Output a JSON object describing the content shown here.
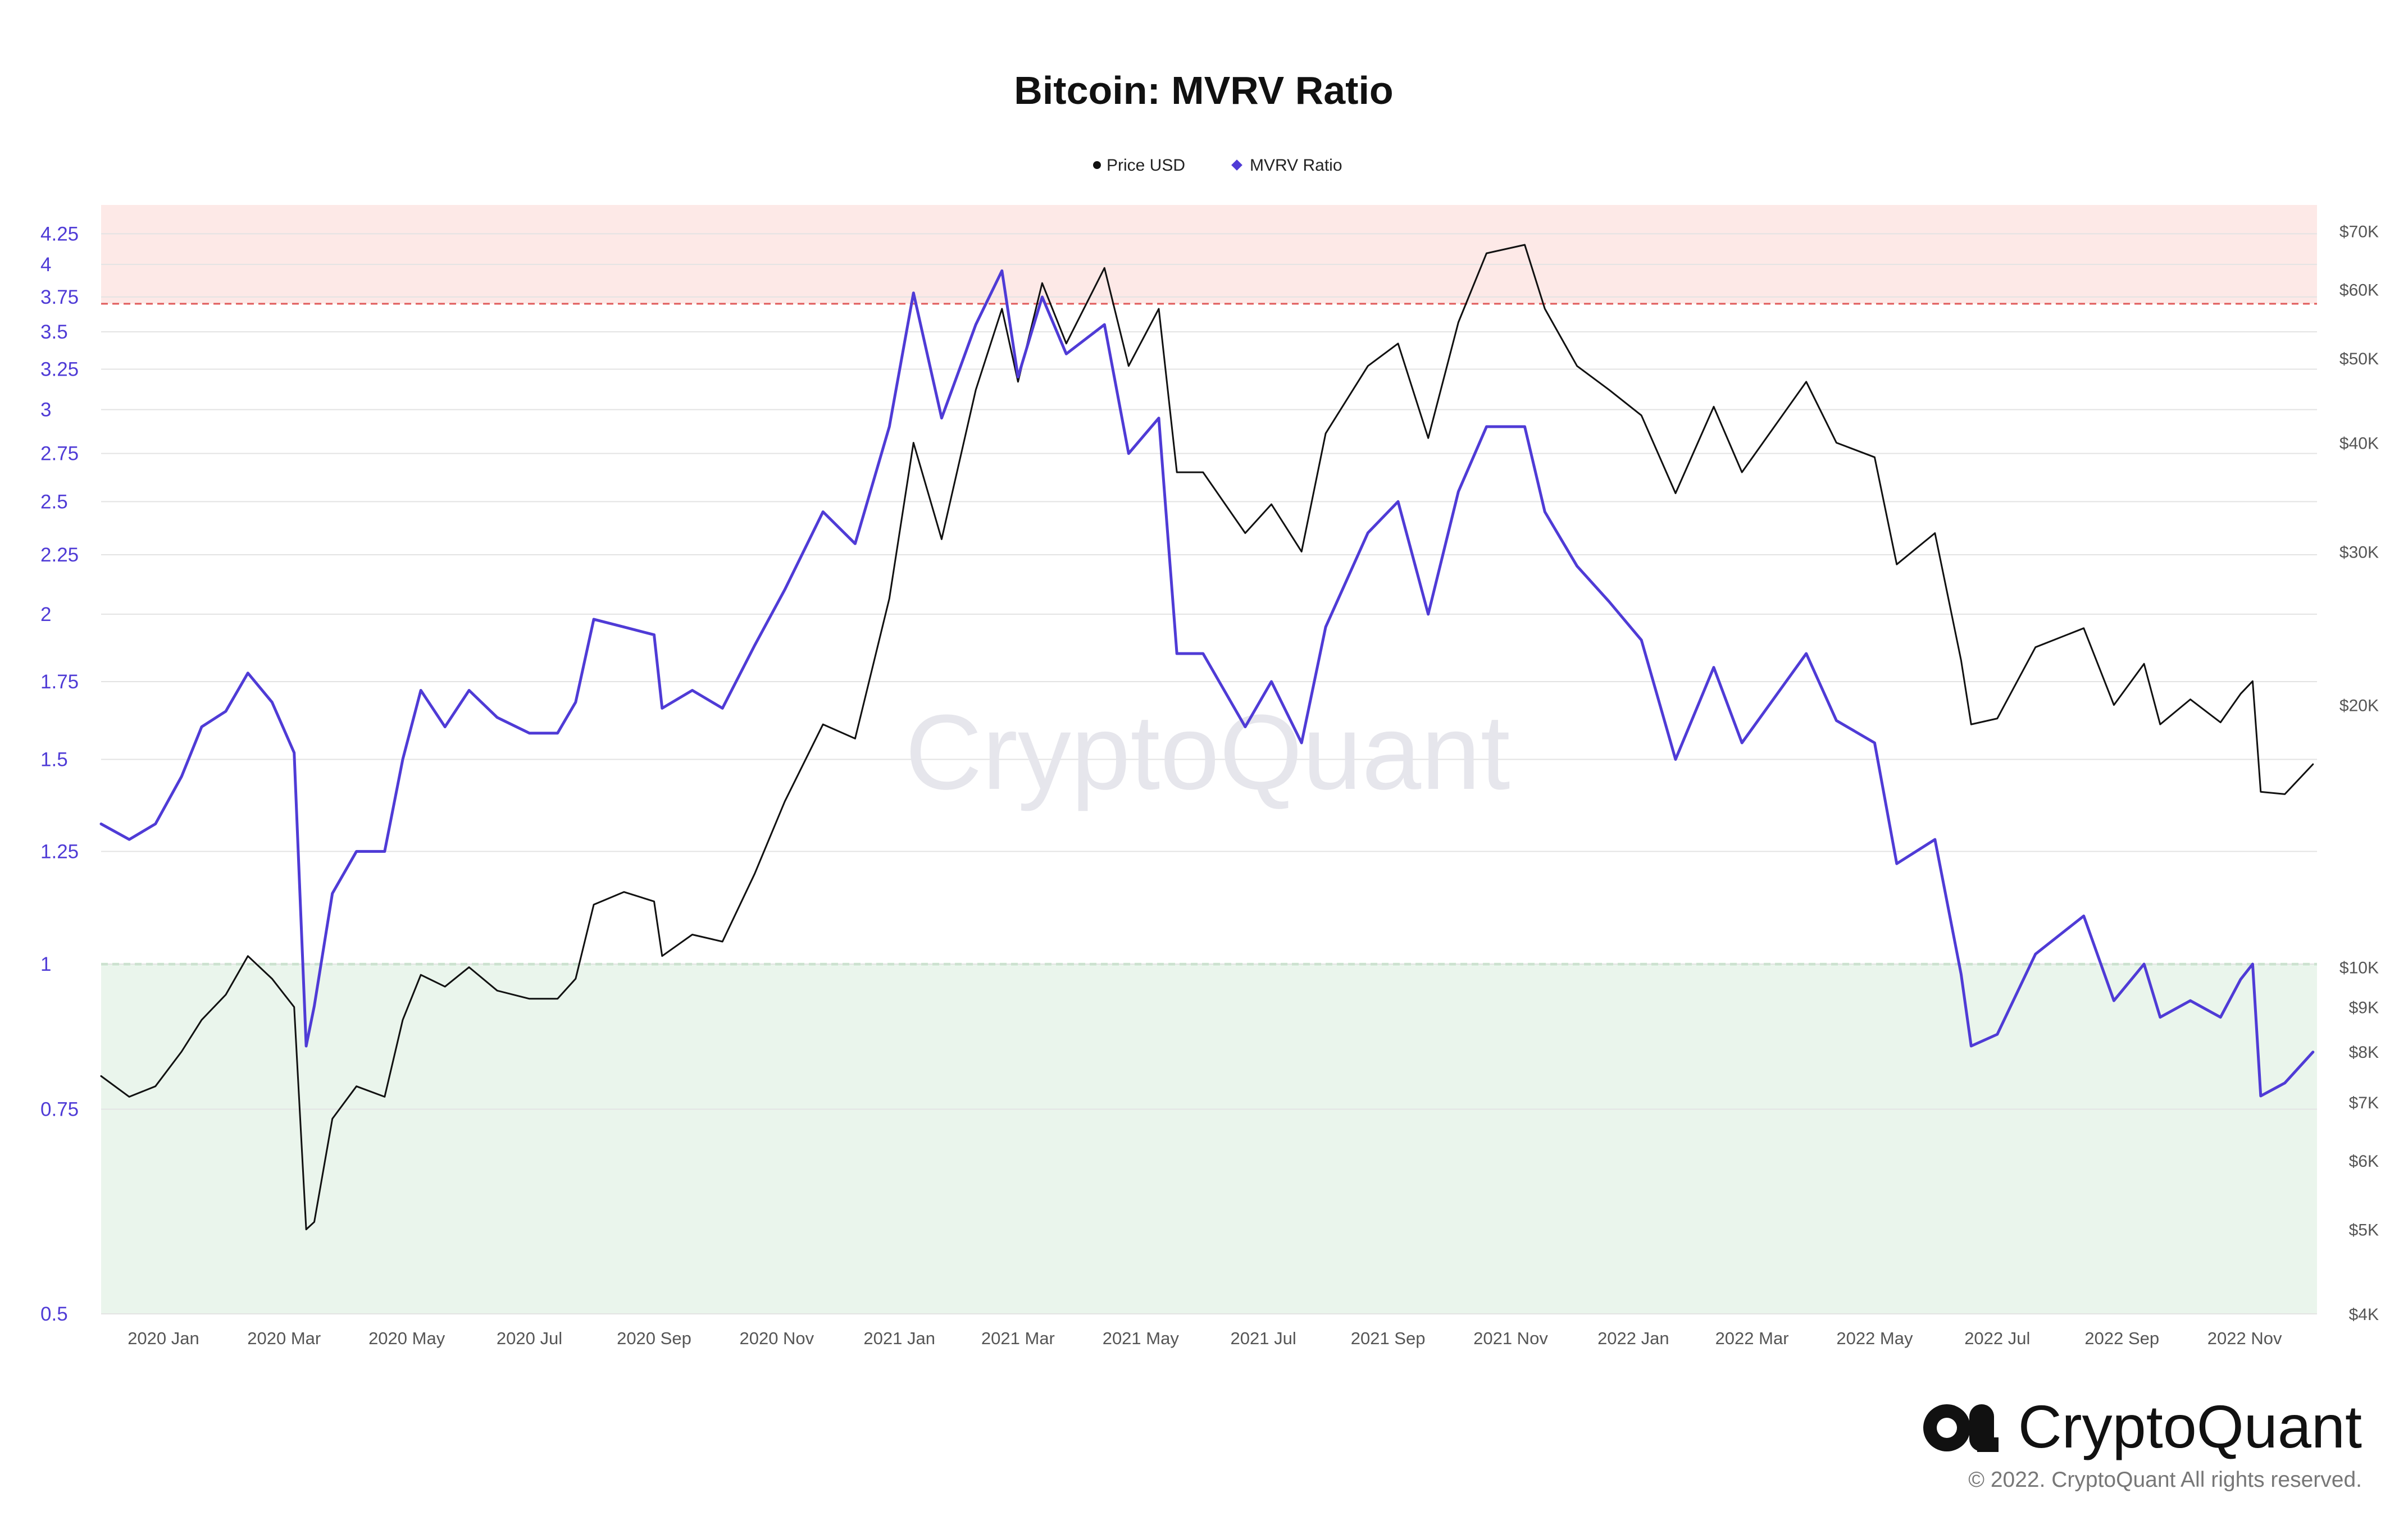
{
  "colors": {
    "price": "#111111",
    "mvrv": "#4f3bd6",
    "overvalued_band": "#fde9e7",
    "overvalued_line": "#e05a5a",
    "undervalued_band": "#eaf5ec",
    "undervalued_line": "#5bbf6b",
    "grid": "#e3e3e3"
  },
  "branding": {
    "watermark": "CryptoQuant",
    "logo_text": "CryptoQuant",
    "copyright": "© 2022. CryptoQuant All rights reserved."
  },
  "chart_data": {
    "type": "line",
    "title": "Bitcoin: MVRV Ratio",
    "legend": {
      "placement": "top-center",
      "items": [
        {
          "label": "Price USD",
          "marker": "circle",
          "color": "#111111"
        },
        {
          "label": "MVRV Ratio",
          "marker": "diamond",
          "color": "#4f3bd6"
        }
      ]
    },
    "grid": true,
    "x_axis": {
      "type": "date",
      "range": [
        "2019-12-01",
        "2022-12-07"
      ],
      "tick_labels": [
        "2020 Jan",
        "2020 Mar",
        "2020 May",
        "2020 Jul",
        "2020 Sep",
        "2020 Nov",
        "2021 Jan",
        "2021 Mar",
        "2021 May",
        "2021 Jul",
        "2021 Sep",
        "2021 Nov",
        "2022 Jan",
        "2022 Mar",
        "2022 May",
        "2022 Jul",
        "2022 Sep",
        "2022 Nov"
      ],
      "tick_dates": [
        "2020-01-01",
        "2020-03-01",
        "2020-05-01",
        "2020-07-01",
        "2020-09-01",
        "2020-11-01",
        "2021-01-01",
        "2021-03-01",
        "2021-05-01",
        "2021-07-01",
        "2021-09-01",
        "2021-11-01",
        "2022-01-01",
        "2022-03-01",
        "2022-05-01",
        "2022-07-01",
        "2022-09-01",
        "2022-11-01"
      ]
    },
    "left_axis": {
      "label": "",
      "scale": "log",
      "range": [
        0.5,
        4.5
      ],
      "ticks": [
        0.5,
        0.75,
        1,
        1.25,
        1.5,
        1.75,
        2,
        2.25,
        2.5,
        2.75,
        3,
        3.25,
        3.5,
        3.75,
        4,
        4.25
      ],
      "tick_labels": [
        "0.5",
        "0.75",
        "1",
        "1.25",
        "1.5",
        "1.75",
        "2",
        "2.25",
        "2.5",
        "2.75",
        "3",
        "3.25",
        "3.5",
        "3.75",
        "4",
        "4.25"
      ]
    },
    "right_axis": {
      "label": "",
      "scale": "log",
      "range": [
        4000,
        75000
      ],
      "ticks": [
        4000,
        5000,
        6000,
        7000,
        8000,
        9000,
        10000,
        20000,
        30000,
        40000,
        50000,
        60000,
        70000
      ],
      "tick_labels": [
        "$4K",
        "$5K",
        "$6K",
        "$7K",
        "$8K",
        "$9K",
        "$10K",
        "$20K",
        "$30K",
        "$40K",
        "$50K",
        "$60K",
        "$70K"
      ]
    },
    "bands": [
      {
        "name": "overvalued",
        "from": 3.7,
        "to": 4.5,
        "threshold": 3.7
      },
      {
        "name": "undervalued",
        "from": 0.5,
        "to": 1.0,
        "threshold": 1.0
      }
    ],
    "series": [
      {
        "name": "Price USD",
        "axis": "right",
        "points": [
          [
            "2019-12-01",
            7500
          ],
          [
            "2019-12-15",
            7100
          ],
          [
            "2019-12-28",
            7300
          ],
          [
            "2020-01-10",
            8000
          ],
          [
            "2020-01-20",
            8700
          ],
          [
            "2020-02-01",
            9300
          ],
          [
            "2020-02-12",
            10300
          ],
          [
            "2020-02-24",
            9700
          ],
          [
            "2020-03-06",
            9000
          ],
          [
            "2020-03-12",
            5000
          ],
          [
            "2020-03-16",
            5100
          ],
          [
            "2020-03-25",
            6700
          ],
          [
            "2020-04-06",
            7300
          ],
          [
            "2020-04-20",
            7100
          ],
          [
            "2020-04-29",
            8700
          ],
          [
            "2020-05-08",
            9800
          ],
          [
            "2020-05-20",
            9500
          ],
          [
            "2020-06-01",
            10000
          ],
          [
            "2020-06-15",
            9400
          ],
          [
            "2020-07-01",
            9200
          ],
          [
            "2020-07-15",
            9200
          ],
          [
            "2020-07-24",
            9700
          ],
          [
            "2020-08-02",
            11800
          ],
          [
            "2020-08-17",
            12200
          ],
          [
            "2020-09-01",
            11900
          ],
          [
            "2020-09-05",
            10300
          ],
          [
            "2020-09-20",
            10900
          ],
          [
            "2020-10-05",
            10700
          ],
          [
            "2020-10-21",
            12800
          ],
          [
            "2020-11-05",
            15500
          ],
          [
            "2020-11-24",
            19000
          ],
          [
            "2020-12-10",
            18300
          ],
          [
            "2020-12-27",
            26500
          ],
          [
            "2021-01-08",
            40000
          ],
          [
            "2021-01-22",
            31000
          ],
          [
            "2021-02-08",
            46000
          ],
          [
            "2021-02-21",
            57000
          ],
          [
            "2021-03-01",
            47000
          ],
          [
            "2021-03-13",
            61000
          ],
          [
            "2021-03-25",
            52000
          ],
          [
            "2021-04-13",
            63500
          ],
          [
            "2021-04-25",
            49000
          ],
          [
            "2021-05-10",
            57000
          ],
          [
            "2021-05-19",
            37000
          ],
          [
            "2021-06-01",
            37000
          ],
          [
            "2021-06-22",
            31500
          ],
          [
            "2021-07-05",
            34000
          ],
          [
            "2021-07-20",
            30000
          ],
          [
            "2021-08-01",
            41000
          ],
          [
            "2021-08-22",
            49000
          ],
          [
            "2021-09-06",
            52000
          ],
          [
            "2021-09-21",
            40500
          ],
          [
            "2021-10-06",
            55000
          ],
          [
            "2021-10-20",
            66000
          ],
          [
            "2021-11-08",
            67500
          ],
          [
            "2021-11-18",
            57000
          ],
          [
            "2021-12-04",
            49000
          ],
          [
            "2021-12-20",
            46000
          ],
          [
            "2022-01-05",
            43000
          ],
          [
            "2022-01-22",
            35000
          ],
          [
            "2022-02-10",
            44000
          ],
          [
            "2022-02-24",
            37000
          ],
          [
            "2022-03-28",
            47000
          ],
          [
            "2022-04-12",
            40000
          ],
          [
            "2022-05-01",
            38500
          ],
          [
            "2022-05-12",
            29000
          ],
          [
            "2022-05-31",
            31500
          ],
          [
            "2022-06-13",
            22500
          ],
          [
            "2022-06-18",
            19000
          ],
          [
            "2022-07-01",
            19300
          ],
          [
            "2022-07-20",
            23300
          ],
          [
            "2022-08-13",
            24500
          ],
          [
            "2022-08-28",
            20000
          ],
          [
            "2022-09-12",
            22300
          ],
          [
            "2022-09-20",
            19000
          ],
          [
            "2022-10-05",
            20300
          ],
          [
            "2022-10-20",
            19100
          ],
          [
            "2022-10-30",
            20600
          ],
          [
            "2022-11-05",
            21300
          ],
          [
            "2022-11-09",
            15900
          ],
          [
            "2022-11-21",
            15800
          ],
          [
            "2022-12-05",
            17100
          ]
        ]
      },
      {
        "name": "MVRV Ratio",
        "axis": "left",
        "points": [
          [
            "2019-12-01",
            1.32
          ],
          [
            "2019-12-15",
            1.28
          ],
          [
            "2019-12-28",
            1.32
          ],
          [
            "2020-01-10",
            1.45
          ],
          [
            "2020-01-20",
            1.6
          ],
          [
            "2020-02-01",
            1.65
          ],
          [
            "2020-02-12",
            1.78
          ],
          [
            "2020-02-24",
            1.68
          ],
          [
            "2020-03-06",
            1.52
          ],
          [
            "2020-03-12",
            0.85
          ],
          [
            "2020-03-16",
            0.92
          ],
          [
            "2020-03-25",
            1.15
          ],
          [
            "2020-04-06",
            1.25
          ],
          [
            "2020-04-20",
            1.25
          ],
          [
            "2020-04-29",
            1.5
          ],
          [
            "2020-05-08",
            1.72
          ],
          [
            "2020-05-20",
            1.6
          ],
          [
            "2020-06-01",
            1.72
          ],
          [
            "2020-06-15",
            1.63
          ],
          [
            "2020-07-01",
            1.58
          ],
          [
            "2020-07-15",
            1.58
          ],
          [
            "2020-07-24",
            1.68
          ],
          [
            "2020-08-02",
            1.98
          ],
          [
            "2020-08-17",
            1.95
          ],
          [
            "2020-09-01",
            1.92
          ],
          [
            "2020-09-05",
            1.66
          ],
          [
            "2020-09-20",
            1.72
          ],
          [
            "2020-10-05",
            1.66
          ],
          [
            "2020-10-21",
            1.88
          ],
          [
            "2020-11-05",
            2.1
          ],
          [
            "2020-11-24",
            2.45
          ],
          [
            "2020-12-10",
            2.3
          ],
          [
            "2020-12-27",
            2.9
          ],
          [
            "2021-01-08",
            3.78
          ],
          [
            "2021-01-22",
            2.95
          ],
          [
            "2021-02-08",
            3.55
          ],
          [
            "2021-02-21",
            3.95
          ],
          [
            "2021-03-01",
            3.2
          ],
          [
            "2021-03-13",
            3.75
          ],
          [
            "2021-03-25",
            3.35
          ],
          [
            "2021-04-13",
            3.55
          ],
          [
            "2021-04-25",
            2.75
          ],
          [
            "2021-05-10",
            2.95
          ],
          [
            "2021-05-19",
            1.85
          ],
          [
            "2021-06-01",
            1.85
          ],
          [
            "2021-06-22",
            1.6
          ],
          [
            "2021-07-05",
            1.75
          ],
          [
            "2021-07-20",
            1.55
          ],
          [
            "2021-08-01",
            1.95
          ],
          [
            "2021-08-22",
            2.35
          ],
          [
            "2021-09-06",
            2.5
          ],
          [
            "2021-09-21",
            2.0
          ],
          [
            "2021-10-06",
            2.55
          ],
          [
            "2021-10-20",
            2.9
          ],
          [
            "2021-11-08",
            2.9
          ],
          [
            "2021-11-18",
            2.45
          ],
          [
            "2021-12-04",
            2.2
          ],
          [
            "2021-12-20",
            2.05
          ],
          [
            "2022-01-05",
            1.9
          ],
          [
            "2022-01-22",
            1.5
          ],
          [
            "2022-02-10",
            1.8
          ],
          [
            "2022-02-24",
            1.55
          ],
          [
            "2022-03-28",
            1.85
          ],
          [
            "2022-04-12",
            1.62
          ],
          [
            "2022-05-01",
            1.55
          ],
          [
            "2022-05-12",
            1.22
          ],
          [
            "2022-05-31",
            1.28
          ],
          [
            "2022-06-13",
            0.98
          ],
          [
            "2022-06-18",
            0.85
          ],
          [
            "2022-07-01",
            0.87
          ],
          [
            "2022-07-20",
            1.02
          ],
          [
            "2022-08-13",
            1.1
          ],
          [
            "2022-08-28",
            0.93
          ],
          [
            "2022-09-12",
            1.0
          ],
          [
            "2022-09-20",
            0.9
          ],
          [
            "2022-10-05",
            0.93
          ],
          [
            "2022-10-20",
            0.9
          ],
          [
            "2022-10-30",
            0.97
          ],
          [
            "2022-11-05",
            1.0
          ],
          [
            "2022-11-09",
            0.77
          ],
          [
            "2022-11-21",
            0.79
          ],
          [
            "2022-12-05",
            0.84
          ]
        ]
      }
    ]
  }
}
